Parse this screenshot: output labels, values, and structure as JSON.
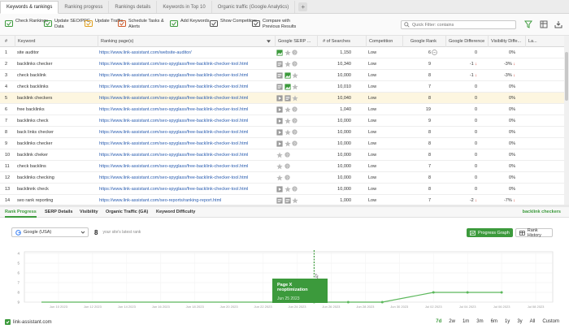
{
  "tabs": [
    {
      "label": "Keywords & rankings",
      "active": true
    },
    {
      "label": "Ranking progress"
    },
    {
      "label": "Rankings details"
    },
    {
      "label": "Keywords in Top 10"
    },
    {
      "label": "Organic traffic (Google Analytics)"
    }
  ],
  "toolbar": {
    "buttons": [
      {
        "label": "Check Rankings",
        "icon": "check-rankings-icon"
      },
      {
        "label": "Update SEO/PPC Data",
        "icon": "update-seo-icon"
      },
      {
        "label": "Update Traffic",
        "icon": "update-traffic-icon"
      },
      {
        "label": "Schedule Tasks & Alerts",
        "icon": "schedule-icon"
      },
      {
        "label": "Add Keywords",
        "icon": "add-keywords-icon"
      },
      {
        "label": "Show Competitors",
        "icon": "competitors-icon"
      },
      {
        "label": "Compare with Previous Results",
        "icon": "compare-icon"
      }
    ],
    "filter_placeholder": "Quick Filter: contains"
  },
  "columns": {
    "num": "#",
    "keyword": "Keyword",
    "page": "Ranking page(s)",
    "serp": "Google SERP ...",
    "searches": "# of Searches",
    "competition": "Competition",
    "rank": "Google Rank",
    "diff": "Google Difference",
    "visdiff": "Visibility Diffe...",
    "la": "La..."
  },
  "rows": [
    {
      "num": "1",
      "keyword": "site auditor",
      "page": "https://www.link-assistant.com/website-auditor/",
      "searches": "1,150",
      "competition": "Low",
      "rank": "6",
      "diff": "0",
      "diff_dir": "",
      "vis": "0%",
      "vis_dir": "",
      "serp": [
        "img",
        "star",
        "q"
      ]
    },
    {
      "num": "2",
      "keyword": "backlinks checker",
      "page": "https://www.link-assistant.com/seo-spyglass/free-backlink-checker-tool.html",
      "searches": "10,340",
      "competition": "Low",
      "rank": "9",
      "diff": "-1",
      "diff_dir": "down",
      "vis": "-3%",
      "vis_dir": "down",
      "serp": [
        "doc",
        "star",
        "q"
      ]
    },
    {
      "num": "3",
      "keyword": "check backlink",
      "page": "https://www.link-assistant.com/seo-spyglass/free-backlink-checker-tool.html",
      "searches": "10,000",
      "competition": "Low",
      "rank": "8",
      "diff": "-1",
      "diff_dir": "down",
      "vis": "-3%",
      "vis_dir": "down",
      "serp": [
        "doc",
        "img",
        "star"
      ]
    },
    {
      "num": "4",
      "keyword": "check backlinks",
      "page": "https://www.link-assistant.com/seo-spyglass/free-backlink-checker-tool.html",
      "searches": "10,010",
      "competition": "Low",
      "rank": "7",
      "diff": "0",
      "diff_dir": "",
      "vis": "0%",
      "vis_dir": "",
      "serp": [
        "doc",
        "img",
        "star"
      ]
    },
    {
      "num": "5",
      "keyword": "backlink checkers",
      "page": "https://www.link-assistant.com/seo-spyglass/free-backlink-checker-tool.html",
      "searches": "10,040",
      "competition": "Low",
      "rank": "8",
      "diff": "0",
      "diff_dir": "",
      "vis": "0%",
      "vis_dir": "",
      "serp": [
        "play",
        "doc",
        "star"
      ],
      "selected": true
    },
    {
      "num": "6",
      "keyword": "free backlinks",
      "page": "https://www.link-assistant.com/seo-spyglass/free-backlink-checker-tool.html",
      "searches": "1,040",
      "competition": "Low",
      "rank": "19",
      "diff": "0",
      "diff_dir": "",
      "vis": "0%",
      "vis_dir": "",
      "serp": [
        "play",
        "star",
        "q"
      ]
    },
    {
      "num": "7",
      "keyword": "backlinks check",
      "page": "https://www.link-assistant.com/seo-spyglass/free-backlink-checker-tool.html",
      "searches": "10,000",
      "competition": "Low",
      "rank": "9",
      "diff": "0",
      "diff_dir": "",
      "vis": "0%",
      "vis_dir": "",
      "serp": [
        "play",
        "star",
        "q"
      ]
    },
    {
      "num": "8",
      "keyword": "back links checker",
      "page": "https://www.link-assistant.com/seo-spyglass/free-backlink-checker-tool.html",
      "searches": "10,000",
      "competition": "Low",
      "rank": "8",
      "diff": "0",
      "diff_dir": "",
      "vis": "0%",
      "vis_dir": "",
      "serp": [
        "play",
        "star",
        "q"
      ]
    },
    {
      "num": "9",
      "keyword": "backlinks checker",
      "page": "https://www.link-assistant.com/seo-spyglass/free-backlink-checker-tool.html",
      "searches": "10,000",
      "competition": "Low",
      "rank": "8",
      "diff": "0",
      "diff_dir": "",
      "vis": "0%",
      "vis_dir": "",
      "serp": [
        "play",
        "star",
        "q"
      ]
    },
    {
      "num": "10",
      "keyword": "backlink cheker",
      "page": "https://www.link-assistant.com/seo-spyglass/free-backlink-checker-tool.html",
      "searches": "10,000",
      "competition": "Low",
      "rank": "8",
      "diff": "0",
      "diff_dir": "",
      "vis": "0%",
      "vis_dir": "",
      "serp": [
        "star",
        "q"
      ]
    },
    {
      "num": "11",
      "keyword": "check backlins",
      "page": "https://www.link-assistant.com/seo-spyglass/free-backlink-checker-tool.html",
      "searches": "10,000",
      "competition": "Low",
      "rank": "7",
      "diff": "0",
      "diff_dir": "",
      "vis": "0%",
      "vis_dir": "",
      "serp": [
        "star",
        "q"
      ]
    },
    {
      "num": "12",
      "keyword": "backlinks checking",
      "page": "https://www.link-assistant.com/seo-spyglass/free-backlink-checker-tool.html",
      "searches": "10,000",
      "competition": "Low",
      "rank": "8",
      "diff": "0",
      "diff_dir": "",
      "vis": "0%",
      "vis_dir": "",
      "serp": [
        "star",
        "q"
      ]
    },
    {
      "num": "13",
      "keyword": "backlinnk check",
      "page": "https://www.link-assistant.com/seo-spyglass/free-backlink-checker-tool.html",
      "searches": "10,000",
      "competition": "Low",
      "rank": "8",
      "diff": "0",
      "diff_dir": "",
      "vis": "0%",
      "vis_dir": "",
      "serp": [
        "play",
        "star",
        "q"
      ]
    },
    {
      "num": "14",
      "keyword": "seo rank reporting",
      "page": "https://www.link-assistant.com/seo-reports/ranking-report.html",
      "searches": "1,000",
      "competition": "Low",
      "rank": "7",
      "diff": "-2",
      "diff_dir": "down",
      "vis": "-7%",
      "vis_dir": "down",
      "serp": [
        "doc",
        "doc",
        "star"
      ]
    }
  ],
  "bottom_tabs": [
    "Rank Progress",
    "SERP Details",
    "Visibility",
    "Organic Traffic (GA)",
    "Keyword Difficulty"
  ],
  "selected_keyword": "backlink checkers",
  "engine": "Google (USA)",
  "latest_rank": "8",
  "latest_rank_text": "your site's latest rank",
  "btn_progress_graph": "Progress Graph",
  "btn_rank_history": "Rank History",
  "tooltip": {
    "title": "Page X reoptimization",
    "date": "Jun 25 2023"
  },
  "domain_label": "link-assistant.com",
  "periods": [
    "7d",
    "2w",
    "1m",
    "3m",
    "6m",
    "1y",
    "3y",
    "All",
    "Custom"
  ],
  "colors": {
    "accent": "#3c9a3c",
    "link": "#2a5db0",
    "down": "#d0392b",
    "selected_row": "#fdf6e0"
  },
  "chart_data": {
    "type": "line",
    "y_ticks": [
      "4",
      "5",
      "6",
      "7",
      "8",
      "9"
    ],
    "x_ticks": [
      "Jun 10 2023",
      "Jun 12 2023",
      "Jun 14 2023",
      "Jun 16 2023",
      "Jun 18 2023",
      "Jun 20 2023",
      "Jun 22 2023",
      "Jun 24 2023",
      "Jun 26 2023",
      "Jun 28 2023",
      "Jun 30 2023",
      "Jul 02 2023",
      "Jul 04 2023",
      "Jul 06 2023",
      "Jul 08 2023"
    ],
    "series": [
      {
        "values": [
          {
            "x": "Jun 09 2023",
            "y": 9
          },
          {
            "x": "Jun 25 2023",
            "y": 9
          },
          {
            "x": "Jun 27 2023",
            "y": 9
          },
          {
            "x": "Jun 29 2023",
            "y": 9
          },
          {
            "x": "Jul 02 2023",
            "y": 8
          },
          {
            "x": "Jul 04 2023",
            "y": 8
          },
          {
            "x": "Jul 06 2023",
            "y": 8
          }
        ]
      }
    ],
    "ylim": [
      4,
      9
    ],
    "annotation": {
      "x": "Jun 25 2023",
      "label": "Page X reoptimization"
    },
    "grid": true
  }
}
